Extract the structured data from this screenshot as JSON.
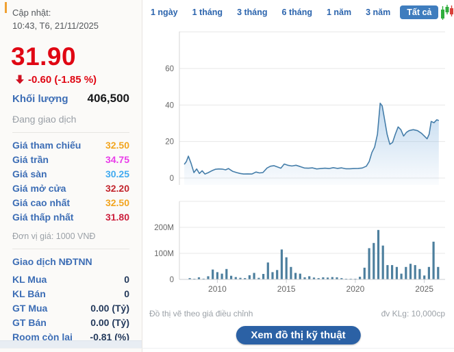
{
  "sidebar": {
    "updated_label": "Cập nhật:",
    "updated_time": "10:43, T6, 21/11/2025",
    "price": "31.90",
    "change": "-0.60 (-1.85 %)",
    "volume_label": "Khối lượng",
    "volume_value": "406,500",
    "status": "Đang giao dịch",
    "price_rows": [
      {
        "label": "Giá tham chiếu",
        "value": "32.50",
        "color": "#f2a51f"
      },
      {
        "label": "Giá trần",
        "value": "34.75",
        "color": "#e93ce9"
      },
      {
        "label": "Giá sàn",
        "value": "30.25",
        "color": "#41aaf0"
      },
      {
        "label": "Giá mở cửa",
        "value": "32.20",
        "color": "#c2242c"
      },
      {
        "label": "Giá cao nhất",
        "value": "32.50",
        "color": "#f2a51f"
      },
      {
        "label": "Giá thấp nhất",
        "value": "31.80",
        "color": "#cc1f3c"
      }
    ],
    "unit_note": "Đơn vị giá: 1000 VNĐ",
    "foreign": {
      "title": "Giao dịch NĐTNN",
      "rows": [
        {
          "label": "KL Mua",
          "value": "0"
        },
        {
          "label": "KL Bán",
          "value": "0"
        },
        {
          "label": "GT Mua",
          "value": "0.00 (Tỷ)"
        },
        {
          "label": "GT Bán",
          "value": "0.00 (Tỷ)"
        },
        {
          "label": "Room còn lại",
          "value": "-0.81 (%)"
        }
      ]
    }
  },
  "toolbar": {
    "ranges": [
      "1 ngày",
      "1 tháng",
      "3 tháng",
      "6 tháng",
      "1 năm",
      "3 năm",
      "Tất cả"
    ],
    "active": "Tất cả",
    "candle_icon": "candlestick-chart-icon"
  },
  "footer": {
    "note_left": "Đồ thị vẽ theo giá điều chỉnh",
    "note_right": "đv KLg: 10,000cp",
    "button": "Xem đồ thị kỹ thuật"
  },
  "colors": {
    "accent_blue": "#2b64ad",
    "price_red": "#e00613",
    "area_line": "#447da9",
    "area_fill": "#7dafdd",
    "volume_bar": "#4d7f9e"
  },
  "chart_data": [
    {
      "type": "area",
      "name": "adjusted-price",
      "ylabel": "",
      "yticks": [
        {
          "v": 0,
          "label": "0"
        },
        {
          "v": 20,
          "label": "20"
        },
        {
          "v": 40,
          "label": "40"
        },
        {
          "v": 60,
          "label": "60"
        },
        {
          "v": 80,
          "label": ""
        }
      ],
      "ylim": [
        0,
        80
      ],
      "xticks": [
        2010,
        2015,
        2020,
        2025
      ],
      "points": [
        [
          2007.6,
          7.5
        ],
        [
          2007.75,
          9
        ],
        [
          2007.9,
          12
        ],
        [
          2008.1,
          8
        ],
        [
          2008.3,
          3
        ],
        [
          2008.5,
          5
        ],
        [
          2008.7,
          2.5
        ],
        [
          2008.9,
          4
        ],
        [
          2009.1,
          2.2
        ],
        [
          2009.35,
          3
        ],
        [
          2009.6,
          4
        ],
        [
          2009.85,
          4.8
        ],
        [
          2010.1,
          5
        ],
        [
          2010.35,
          4.9
        ],
        [
          2010.6,
          4.5
        ],
        [
          2010.8,
          5.2
        ],
        [
          2011.1,
          3.7
        ],
        [
          2011.4,
          3
        ],
        [
          2011.65,
          2.5
        ],
        [
          2011.9,
          2.2
        ],
        [
          2012.2,
          2.3
        ],
        [
          2012.5,
          2.2
        ],
        [
          2012.8,
          3.3
        ],
        [
          2013.05,
          2.8
        ],
        [
          2013.3,
          3
        ],
        [
          2013.6,
          5.5
        ],
        [
          2013.85,
          6.5
        ],
        [
          2014.1,
          6.8
        ],
        [
          2014.35,
          6.1
        ],
        [
          2014.6,
          5.4
        ],
        [
          2014.85,
          7.7
        ],
        [
          2015.1,
          7
        ],
        [
          2015.4,
          6.6
        ],
        [
          2015.7,
          7
        ],
        [
          2016,
          6.3
        ],
        [
          2016.3,
          5.5
        ],
        [
          2016.6,
          5.4
        ],
        [
          2016.9,
          5.6
        ],
        [
          2017.2,
          5
        ],
        [
          2017.5,
          5.2
        ],
        [
          2017.8,
          5.4
        ],
        [
          2018.1,
          5.2
        ],
        [
          2018.4,
          5.7
        ],
        [
          2018.7,
          5.3
        ],
        [
          2019,
          5.6
        ],
        [
          2019.3,
          5.1
        ],
        [
          2019.6,
          5.1
        ],
        [
          2019.9,
          5.2
        ],
        [
          2020.2,
          5.3
        ],
        [
          2020.5,
          5.5
        ],
        [
          2020.8,
          6.5
        ],
        [
          2021,
          9
        ],
        [
          2021.2,
          14
        ],
        [
          2021.4,
          17
        ],
        [
          2021.6,
          24
        ],
        [
          2021.8,
          41
        ],
        [
          2021.95,
          39.5
        ],
        [
          2022.1,
          33
        ],
        [
          2022.3,
          24
        ],
        [
          2022.5,
          18.5
        ],
        [
          2022.7,
          19.5
        ],
        [
          2022.9,
          24
        ],
        [
          2023.1,
          28
        ],
        [
          2023.3,
          26.5
        ],
        [
          2023.5,
          23
        ],
        [
          2023.7,
          25
        ],
        [
          2023.9,
          26
        ],
        [
          2024.2,
          26.5
        ],
        [
          2024.5,
          26
        ],
        [
          2024.8,
          24.5
        ],
        [
          2025,
          23
        ],
        [
          2025.2,
          21.5
        ],
        [
          2025.35,
          24
        ],
        [
          2025.5,
          31
        ],
        [
          2025.7,
          30.3
        ],
        [
          2025.9,
          31.9
        ],
        [
          2026.05,
          31.5
        ]
      ]
    },
    {
      "type": "bar",
      "name": "volume",
      "unit": "shares (đv KLg: 10,000cp)",
      "yticks": [
        {
          "v": 0,
          "label": "0"
        },
        {
          "v": 100,
          "label": "100M"
        },
        {
          "v": 200,
          "label": "200M"
        },
        {
          "v": 300,
          "label": ""
        }
      ],
      "ylim": [
        0,
        300
      ],
      "xticks": [
        2010,
        2015,
        2020,
        2025
      ],
      "start_year": 2008.0,
      "step_years": 0.3333,
      "values_millions": [
        5,
        2,
        8,
        3,
        12,
        38,
        28,
        22,
        40,
        14,
        9,
        6,
        5,
        16,
        25,
        6,
        21,
        65,
        28,
        36,
        115,
        85,
        48,
        25,
        22,
        8,
        12,
        7,
        5,
        8,
        7,
        9,
        8,
        5,
        2,
        1,
        1,
        10,
        45,
        120,
        140,
        190,
        130,
        55,
        55,
        48,
        22,
        48,
        60,
        55,
        40,
        15,
        48,
        145,
        48
      ]
    }
  ]
}
